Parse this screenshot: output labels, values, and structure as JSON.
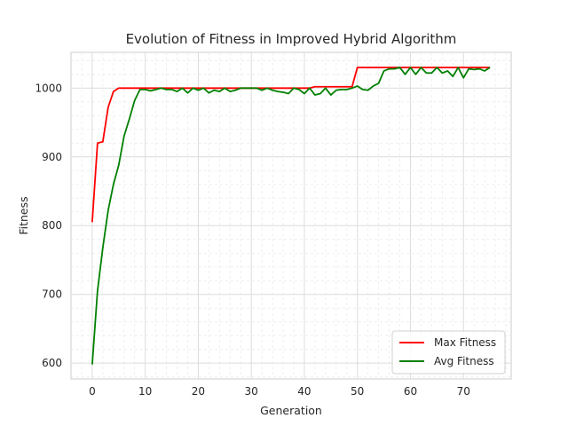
{
  "chart_data": {
    "type": "line",
    "title": "Evolution of Fitness in Improved Hybrid Algorithm",
    "xlabel": "Generation",
    "ylabel": "Fitness",
    "xlim": [
      -4,
      79
    ],
    "ylim": [
      577,
      1052
    ],
    "xticks": [
      0,
      10,
      20,
      30,
      40,
      50,
      60,
      70
    ],
    "yticks": [
      600,
      700,
      800,
      900,
      1000
    ],
    "grid": true,
    "minor_grid": true,
    "legend_position": "lower-right",
    "x": [
      0,
      1,
      2,
      3,
      4,
      5,
      6,
      7,
      8,
      9,
      10,
      11,
      12,
      13,
      14,
      15,
      16,
      17,
      18,
      19,
      20,
      21,
      22,
      23,
      24,
      25,
      26,
      27,
      28,
      29,
      30,
      31,
      32,
      33,
      34,
      35,
      36,
      37,
      38,
      39,
      40,
      41,
      42,
      43,
      44,
      45,
      46,
      47,
      48,
      49,
      50,
      51,
      52,
      53,
      54,
      55,
      56,
      57,
      58,
      59,
      60,
      61,
      62,
      63,
      64,
      65,
      66,
      67,
      68,
      69,
      70,
      71,
      72,
      73,
      74,
      75
    ],
    "series": [
      {
        "name": "Max Fitness",
        "color": "#ff0000",
        "values": [
          805,
          920,
          922,
          972,
          995,
          1000,
          1000,
          1000,
          1000,
          1000,
          1000,
          1000,
          1000,
          1000,
          1000,
          1000,
          1000,
          1000,
          1000,
          1000,
          1000,
          1000,
          1000,
          1000,
          1000,
          1000,
          1000,
          1000,
          1000,
          1000,
          1000,
          1000,
          1000,
          1000,
          1000,
          1000,
          1000,
          1000,
          1000,
          1000,
          1000,
          1000,
          1002,
          1002,
          1002,
          1002,
          1002,
          1002,
          1002,
          1002,
          1030,
          1030,
          1030,
          1030,
          1030,
          1030,
          1030,
          1030,
          1030,
          1030,
          1030,
          1030,
          1030,
          1030,
          1030,
          1030,
          1030,
          1030,
          1030,
          1030,
          1030,
          1030,
          1030,
          1030,
          1030,
          1030
        ]
      },
      {
        "name": "Avg Fitness",
        "color": "#008000",
        "values": [
          598,
          705,
          768,
          822,
          860,
          888,
          930,
          955,
          982,
          998,
          998,
          996,
          998,
          1000,
          998,
          998,
          995,
          1000,
          993,
          1000,
          997,
          1000,
          993,
          997,
          995,
          1000,
          995,
          997,
          1000,
          1000,
          1000,
          1000,
          997,
          1000,
          997,
          995,
          994,
          992,
          1000,
          998,
          992,
          1000,
          990,
          992,
          1000,
          990,
          997,
          998,
          998,
          1000,
          1003,
          998,
          997,
          1003,
          1007,
          1025,
          1028,
          1028,
          1030,
          1020,
          1030,
          1020,
          1030,
          1022,
          1022,
          1030,
          1022,
          1025,
          1017,
          1030,
          1015,
          1028,
          1027,
          1028,
          1025,
          1030
        ]
      }
    ]
  }
}
